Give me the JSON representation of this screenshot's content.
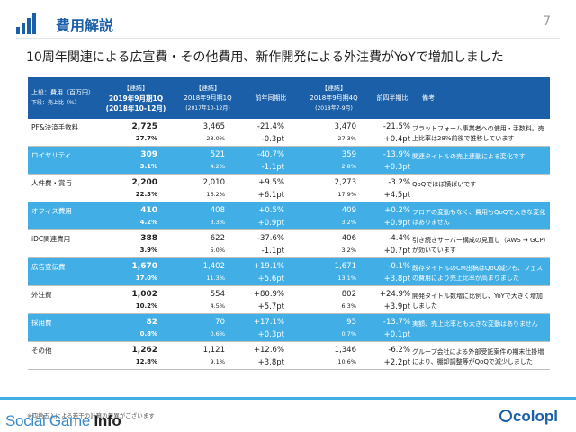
{
  "header": {
    "title": "費用解説",
    "page_number": "7"
  },
  "headline": "10周年関連による広宣費・その他費用、新作開発による外注費がYoYで増加しました",
  "table": {
    "columns": [
      {
        "tag": "",
        "line1": "上段：費用（百万円）",
        "line2": "下段：売上比（%）"
      },
      {
        "tag": "【連結】",
        "line1": "2019年9月期1Q",
        "line2": "(2018年10-12月)"
      },
      {
        "tag": "【連結】",
        "line1": "2018年9月期1Q",
        "line2": "(2017年10-12月)"
      },
      {
        "tag": "",
        "line1": "前年同期比",
        "line2": ""
      },
      {
        "tag": "【連結】",
        "line1": "2018年9月期4Q",
        "line2": "(2018年7-9月)"
      },
      {
        "tag": "",
        "line1": "前四半期比",
        "line2": ""
      },
      {
        "tag": "",
        "line1": "備考",
        "line2": ""
      }
    ],
    "rows": [
      {
        "name": "PF&決済手数料",
        "style": "white",
        "v1": "2,725",
        "v1p": "27.7%",
        "v2": "3,465",
        "v2p": "28.0%",
        "yoy": "-21.4%",
        "yoyp": "-0.3pt",
        "v4": "3,470",
        "v4p": "27.3%",
        "qoq": "-21.5%",
        "qoqp": "+0.4pt",
        "note": "プラットフォーム事業者への使用・手数料。売上比率は28%前後で推移しています"
      },
      {
        "name": "ロイヤリティ",
        "style": "blue",
        "v1": "309",
        "v1p": "3.1%",
        "v2": "521",
        "v2p": "4.2%",
        "yoy": "-40.7%",
        "yoyp": "-1.1pt",
        "v4": "359",
        "v4p": "2.8%",
        "qoq": "-13.9%",
        "qoqp": "+0.3pt",
        "note": "関連タイトルの売上連動による変化です"
      },
      {
        "name": "人件費・賞与",
        "style": "white",
        "v1": "2,200",
        "v1p": "22.3%",
        "v2": "2,010",
        "v2p": "16.2%",
        "yoy": "+9.5%",
        "yoyp": "+6.1pt",
        "v4": "2,273",
        "v4p": "17.9%",
        "qoq": "-3.2%",
        "qoqp": "+4.5pt",
        "note": "QoQでほぼ横ばいです"
      },
      {
        "name": "オフィス費用",
        "style": "blue",
        "v1": "410",
        "v1p": "4.2%",
        "v2": "408",
        "v2p": "3.3%",
        "yoy": "+0.5%",
        "yoyp": "+0.9pt",
        "v4": "409",
        "v4p": "3.2%",
        "qoq": "+0.2%",
        "qoqp": "+0.9pt",
        "note": "フロアの変動もなく、費用もQoQで大きな変化はありません"
      },
      {
        "name": "iDC関連費用",
        "style": "white",
        "v1": "388",
        "v1p": "3.9%",
        "v2": "622",
        "v2p": "5.0%",
        "yoy": "-37.6%",
        "yoyp": "-1.1pt",
        "v4": "406",
        "v4p": "3.2%",
        "qoq": "-4.4%",
        "qoqp": "+0.7pt",
        "note": "引き続きサーバー構成の見直し（AWS → GCP）が効いています"
      },
      {
        "name": "広告宣伝費",
        "style": "blue",
        "v1": "1,670",
        "v1p": "17.0%",
        "v2": "1,402",
        "v2p": "11.3%",
        "yoy": "+19.1%",
        "yoyp": "+5.6pt",
        "v4": "1,671",
        "v4p": "13.1%",
        "qoq": "-0.1%",
        "qoqp": "+3.8pt",
        "note": "既存タイトルのCM出稿はQoQ減少も、フェスの費用により売上比率が高まりました"
      },
      {
        "name": "外注費",
        "style": "white",
        "v1": "1,002",
        "v1p": "10.2%",
        "v2": "554",
        "v2p": "4.5%",
        "yoy": "+80.9%",
        "yoyp": "+5.7pt",
        "v4": "802",
        "v4p": "6.3%",
        "qoq": "+24.9%",
        "qoqp": "+3.9pt",
        "note": "開発タイトル数増に比例し、YoYで大きく増加しました"
      },
      {
        "name": "採用費",
        "style": "blue",
        "v1": "82",
        "v1p": "0.8%",
        "v2": "70",
        "v2p": "0.6%",
        "yoy": "+17.1%",
        "yoyp": "+0.3pt",
        "v4": "95",
        "v4p": "0.7%",
        "qoq": "-13.7%",
        "qoqp": "+0.1pt",
        "note": "実額、売上比率とも大きな変動はありません"
      },
      {
        "name": "その他",
        "style": "white",
        "v1": "1,262",
        "v1p": "12.8%",
        "v2": "1,121",
        "v2p": "9.1%",
        "yoy": "+12.6%",
        "yoyp": "+3.8pt",
        "v4": "1,346",
        "v4p": "10.6%",
        "qoq": "-6.2%",
        "qoqp": "+2.2pt",
        "note": "グループ会社による外部受託案件の期末仕掛増により、棚卸調整等がQoQで減少しました"
      }
    ]
  },
  "footnote": "※四捨五入による若干の計算の差異がございます",
  "brand": {
    "social": "Social Game ",
    "info": "Info",
    "colopl": "colopl"
  },
  "colors": {
    "accent": "#1a5fa8",
    "row_highlight": "#42aee6"
  }
}
